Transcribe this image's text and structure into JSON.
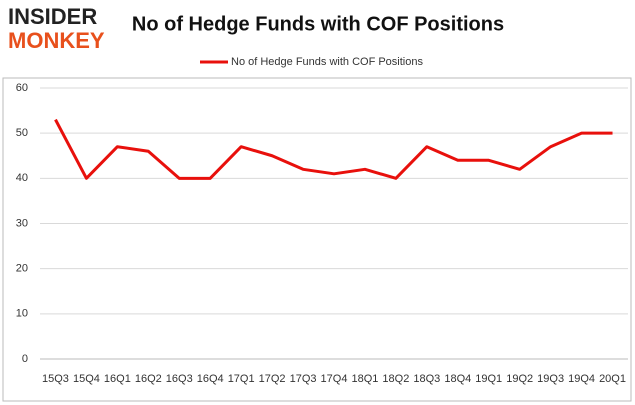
{
  "logo": {
    "top": "INSIDER",
    "bottom": "MONKEY"
  },
  "chart_data": {
    "type": "line",
    "title": "No of Hedge Funds with COF Positions",
    "categories": [
      "15Q3",
      "15Q4",
      "16Q1",
      "16Q2",
      "16Q3",
      "16Q4",
      "17Q1",
      "17Q2",
      "17Q3",
      "17Q4",
      "18Q1",
      "18Q2",
      "18Q3",
      "18Q4",
      "19Q1",
      "19Q2",
      "19Q3",
      "19Q4",
      "20Q1"
    ],
    "series": [
      {
        "name": "No of Hedge Funds with COF Positions",
        "color": "#e8100c",
        "values": [
          53,
          40,
          47,
          46,
          40,
          40,
          47,
          45,
          42,
          41,
          42,
          40,
          47,
          44,
          44,
          42,
          47,
          50,
          50
        ]
      }
    ],
    "ylim": [
      0,
      60
    ],
    "yticks": [
      0,
      10,
      20,
      30,
      40,
      50,
      60
    ],
    "grid": true,
    "legend": "top"
  }
}
